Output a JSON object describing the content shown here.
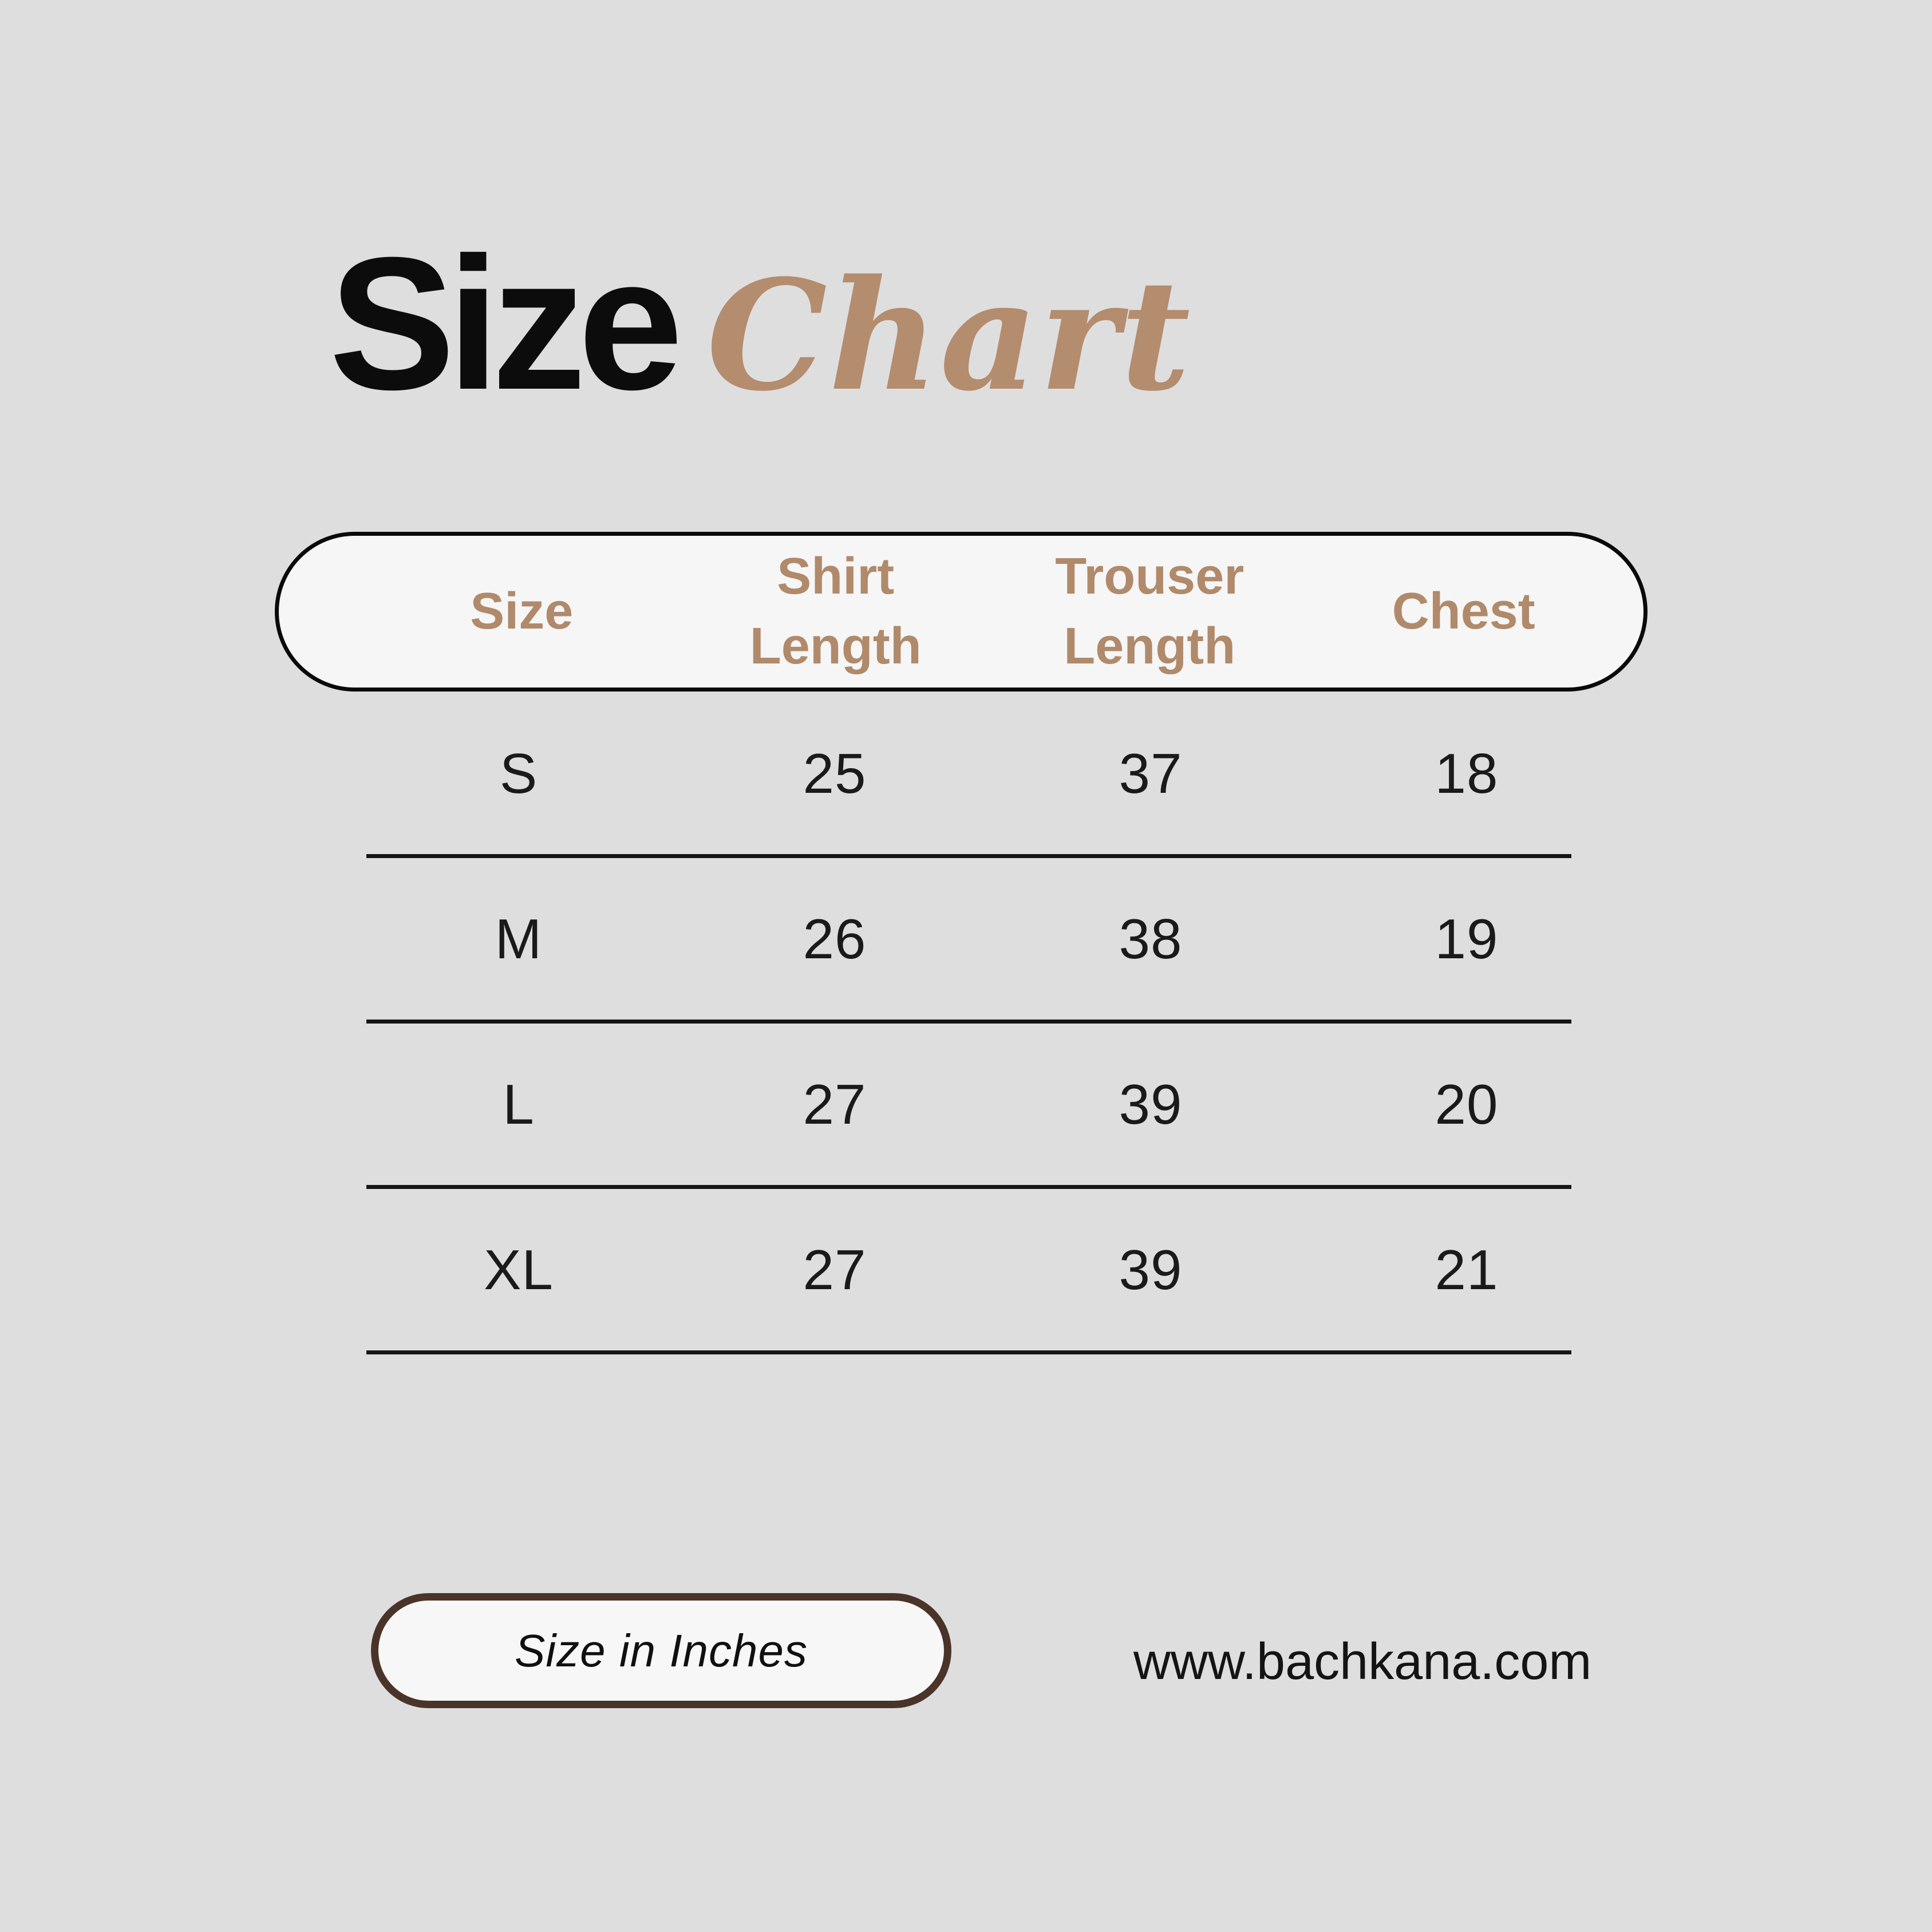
{
  "background": "#dedede",
  "title": {
    "word_black": "Size",
    "word_script": "Chart"
  },
  "colors": {
    "accent_brown": "#b08a6a",
    "script_brown": "#b48c6e",
    "title_black": "#0c0c0c",
    "table_text": "#1a1a1a",
    "header_pill_bg": "#f6f6f6",
    "header_pill_border": "#0a0a0a",
    "unit_pill_bg": "#f7f7f7",
    "unit_pill_border": "#4a3429",
    "divider": "#151515"
  },
  "table": {
    "headers": [
      "Size",
      "Shirt Length",
      "Trouser Length",
      "Chest"
    ],
    "rows": [
      {
        "cells": [
          "S",
          "25",
          "37",
          "18"
        ]
      },
      {
        "cells": [
          "M",
          "26",
          "38",
          "19"
        ]
      },
      {
        "cells": [
          "L",
          "27",
          "39",
          "20"
        ]
      },
      {
        "cells": [
          "XL",
          "27",
          "39",
          "21"
        ]
      }
    ]
  },
  "footer": {
    "unit_label": "Size in Inches",
    "website": "www.bachkana.com"
  },
  "chart_data": {
    "type": "table",
    "title": "Size Chart",
    "columns": [
      "Size",
      "Shirt Length",
      "Trouser Length",
      "Chest"
    ],
    "rows": [
      [
        "S",
        25,
        37,
        18
      ],
      [
        "M",
        26,
        38,
        19
      ],
      [
        "L",
        27,
        39,
        20
      ],
      [
        "XL",
        27,
        39,
        21
      ]
    ],
    "units": "inches"
  }
}
